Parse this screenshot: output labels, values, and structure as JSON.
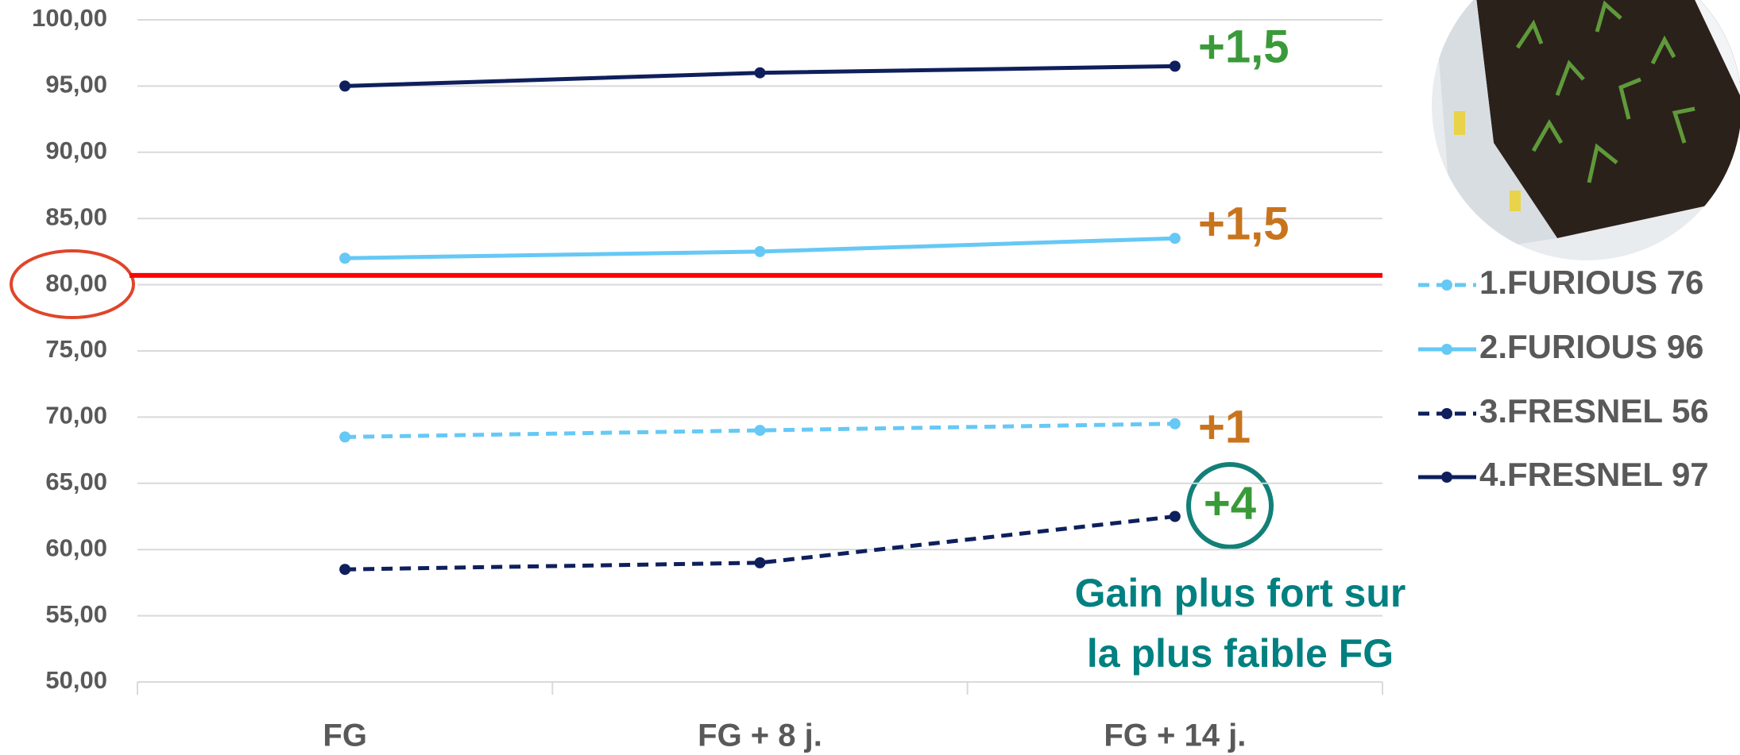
{
  "chart_data": {
    "type": "line",
    "categories": [
      "FG",
      "FG + 8 j.",
      "FG + 14 j."
    ],
    "series": [
      {
        "name": "1.FURIOUS 76",
        "color": "#66c8f5",
        "dash": true,
        "values": [
          68.5,
          69,
          69.5
        ]
      },
      {
        "name": "2.FURIOUS 96",
        "color": "#66c8f5",
        "dash": false,
        "values": [
          82,
          82.5,
          83.5
        ]
      },
      {
        "name": "3.FRESNEL 56",
        "color": "#0e1f5b",
        "dash": true,
        "values": [
          58.5,
          59,
          62.5
        ]
      },
      {
        "name": "4.FRESNEL 97",
        "color": "#0e1f5b",
        "dash": false,
        "values": [
          95,
          96,
          96.5
        ]
      }
    ],
    "ylim": [
      50,
      100
    ],
    "yticks": [
      {
        "value": 50,
        "label": "50,00"
      },
      {
        "value": 55,
        "label": "55,00"
      },
      {
        "value": 60,
        "label": "60,00"
      },
      {
        "value": 65,
        "label": "65,00"
      },
      {
        "value": 70,
        "label": "70,00"
      },
      {
        "value": 75,
        "label": "75,00"
      },
      {
        "value": 80,
        "label": "80,00"
      },
      {
        "value": 85,
        "label": "85,00"
      },
      {
        "value": 90,
        "label": "90,00"
      },
      {
        "value": 95,
        "label": "95,00"
      },
      {
        "value": 100,
        "label": "100,00"
      }
    ],
    "grid": true,
    "legend": "right",
    "reference_line": {
      "value": 80.7,
      "color": "#ff0000"
    },
    "annotations": [
      {
        "text": "+1,5",
        "color": "#3a9a3a"
      },
      {
        "text": "+1,5",
        "color": "#c8741c"
      },
      {
        "text": "+1",
        "color": "#c8741c"
      },
      {
        "text": "+4",
        "color": "#3a9a3a"
      }
    ],
    "caption": [
      "Gain plus fort sur",
      "la plus faible FG"
    ]
  }
}
